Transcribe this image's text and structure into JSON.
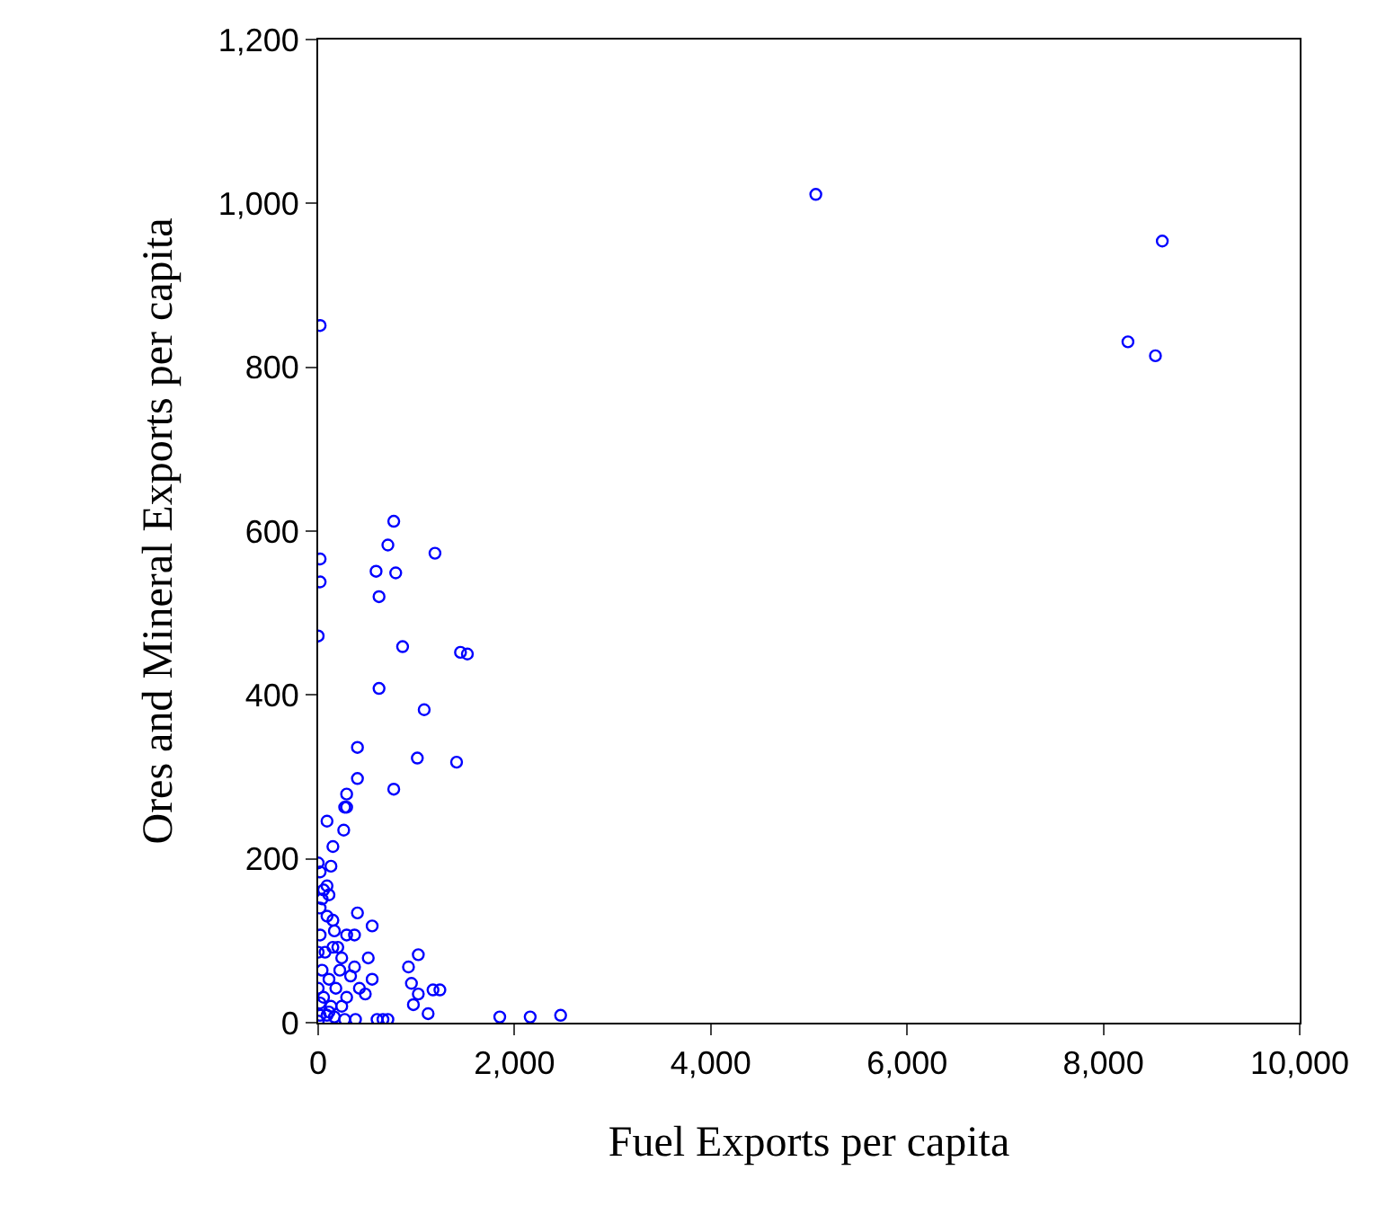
{
  "chart_data": {
    "type": "scatter",
    "xlabel": "Fuel Exports per capita",
    "ylabel": "Ores and Mineral Exports per capita",
    "marker": "circle",
    "xlim": [
      0,
      10000
    ],
    "xticks": [
      {
        "value": 0,
        "label": "0"
      },
      {
        "value": 2000,
        "label": "2,000"
      },
      {
        "value": 4000,
        "label": "4,000"
      },
      {
        "value": 6000,
        "label": "6,000"
      },
      {
        "value": 8000,
        "label": "8,000"
      },
      {
        "value": 10000,
        "label": "10,000"
      }
    ],
    "ylim": [
      0,
      1200
    ],
    "yticks": [
      {
        "value": 0,
        "label": "0"
      },
      {
        "value": 200,
        "label": "200"
      },
      {
        "value": 400,
        "label": "400"
      },
      {
        "value": 600,
        "label": "600"
      },
      {
        "value": 800,
        "label": "800"
      },
      {
        "value": 1000,
        "label": "1,000"
      },
      {
        "value": 1200,
        "label": "1,200"
      }
    ],
    "series": [
      {
        "color": "#0000ff",
        "x": [
          5070,
          8600,
          8250,
          8530,
          20,
          770,
          710,
          1190,
          590,
          790,
          620,
          20,
          20,
          0,
          860,
          1450,
          1520,
          620,
          1080,
          400,
          1010,
          1410,
          400,
          770,
          290,
          290,
          270,
          90,
          260,
          150,
          130,
          400,
          550,
          370,
          150,
          290,
          1020,
          510,
          920,
          370,
          550,
          950,
          1170,
          1240,
          480,
          1020,
          970,
          1120,
          600,
          660,
          710,
          1850,
          2160,
          2470,
          110,
          90,
          20,
          150,
          200,
          240,
          330,
          420,
          290,
          240,
          110,
          270,
          380,
          20,
          40,
          55,
          20,
          0,
          70,
          110,
          90,
          165,
          40,
          0,
          130,
          180,
          220,
          20,
          55,
          0,
          0,
          20,
          90,
          165
        ],
        "values": [
          1011,
          954,
          831,
          814,
          851,
          612,
          583,
          573,
          551,
          549,
          520,
          566,
          538,
          472,
          459,
          452,
          450,
          408,
          382,
          336,
          323,
          318,
          298,
          285,
          279,
          263,
          263,
          246,
          235,
          215,
          191,
          134,
          118,
          107,
          125,
          107,
          83,
          79,
          68,
          68,
          53,
          48,
          40,
          40,
          35,
          35,
          22,
          11,
          4,
          4,
          4,
          7,
          7,
          9,
          156,
          167,
          184,
          92,
          92,
          79,
          57,
          42,
          31,
          20,
          13,
          4,
          4,
          107,
          64,
          31,
          9,
          2,
          86,
          53,
          130,
          112,
          151,
          195,
          20,
          42,
          64,
          140,
          162,
          86,
          42,
          24,
          9,
          7
        ]
      }
    ]
  }
}
